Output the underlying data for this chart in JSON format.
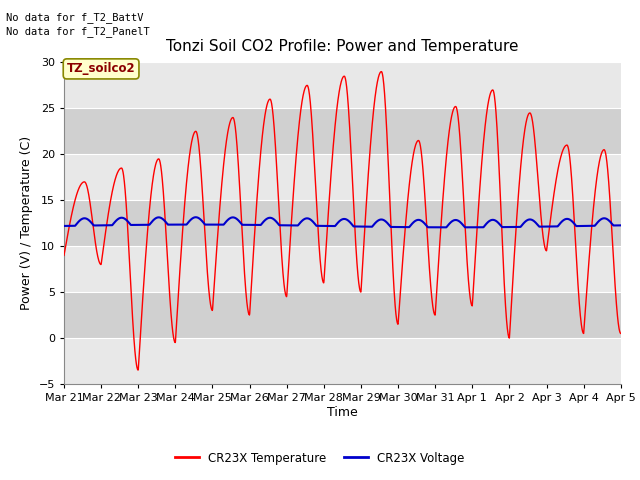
{
  "title": "Tonzi Soil CO2 Profile: Power and Temperature",
  "ylabel": "Power (V) / Temperature (C)",
  "xlabel": "Time",
  "ylim": [
    -5,
    30
  ],
  "yticks": [
    -5,
    0,
    5,
    10,
    15,
    20,
    25,
    30
  ],
  "n_days": 15,
  "x_tick_labels": [
    "Mar 21",
    "Mar 22",
    "Mar 23",
    "Mar 24",
    "Mar 25",
    "Mar 26",
    "Mar 27",
    "Mar 28",
    "Mar 29",
    "Mar 30",
    "Mar 31",
    "Apr 1",
    "Apr 2",
    "Apr 3",
    "Apr 4",
    "Apr 5"
  ],
  "no_data_text1": "No data for f_T2_BattV",
  "no_data_text2": "No data for f_T2_PanelT",
  "legend_box_label": "TZ_soilco2",
  "temp_color": "#ff0000",
  "volt_color": "#0000cc",
  "bg_color_light": "#e8e8e8",
  "bg_color_dark": "#d0d0d0",
  "title_fontsize": 11,
  "axis_fontsize": 9,
  "tick_fontsize": 8,
  "temp_peaks": [
    17.0,
    18.5,
    19.5,
    22.5,
    24.0,
    26.0,
    27.5,
    28.5,
    29.0,
    21.5,
    25.2,
    27.0,
    24.5,
    21.0,
    20.5
  ],
  "temp_troughs": [
    9.0,
    8.0,
    -3.5,
    -0.5,
    3.0,
    2.5,
    4.5,
    6.0,
    5.0,
    1.5,
    2.5,
    3.5,
    0.0,
    9.5,
    0.5
  ],
  "volt_base": 12.2,
  "volt_amp": 0.8,
  "legend_label_temp": "CR23X Temperature",
  "legend_label_volt": "CR23X Voltage"
}
